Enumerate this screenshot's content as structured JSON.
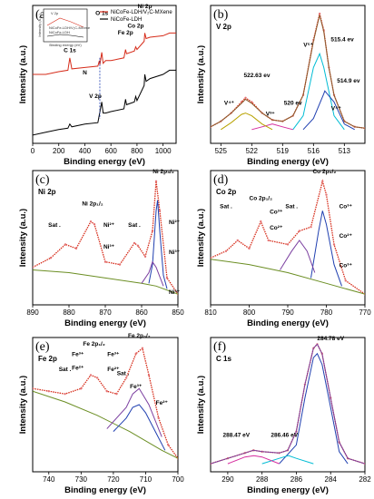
{
  "chart_data": [
    {
      "panel": "(a)",
      "type": "line",
      "title": "",
      "xlabel": "Binding energy (eV)",
      "ylabel": "Intensity (a.u.)",
      "xlim": [
        0,
        1100
      ],
      "xticks": [
        "0",
        "200",
        "400",
        "600",
        "800",
        "1000"
      ],
      "x_reversed": false,
      "series": [
        {
          "name": "NiCoFe-LDH/V₂C-MXene",
          "color": "#d62c1a",
          "x": [
            0,
            100,
            200,
            270,
            285,
            300,
            400,
            500,
            512,
            515,
            530,
            540,
            560,
            600,
            700,
            712,
            720,
            780,
            790,
            800,
            855,
            860,
            870,
            900,
            1000,
            1050,
            1100
          ],
          "y": [
            0.5,
            0.5,
            0.52,
            0.53,
            0.62,
            0.54,
            0.55,
            0.56,
            0.6,
            0.57,
            0.66,
            0.58,
            0.6,
            0.6,
            0.62,
            0.68,
            0.65,
            0.67,
            0.7,
            0.68,
            0.74,
            0.8,
            0.76,
            0.77,
            0.78,
            0.8,
            0.8
          ]
        },
        {
          "name": "NiCoFe-LDH",
          "color": "#000000",
          "x": [
            0,
            100,
            200,
            270,
            285,
            300,
            400,
            500,
            530,
            540,
            560,
            600,
            700,
            712,
            720,
            780,
            790,
            800,
            855,
            860,
            870,
            900,
            1000,
            1050,
            1100
          ],
          "y": [
            0.06,
            0.08,
            0.1,
            0.11,
            0.14,
            0.12,
            0.14,
            0.15,
            0.3,
            0.22,
            0.22,
            0.23,
            0.25,
            0.32,
            0.28,
            0.3,
            0.34,
            0.31,
            0.42,
            0.5,
            0.45,
            0.47,
            0.5,
            0.53,
            0.53
          ]
        }
      ],
      "annotations": [
        {
          "text": "C 1s",
          "x": 285,
          "y": 0.66
        },
        {
          "text": "N",
          "x": 400,
          "y": 0.5
        },
        {
          "text": "O 1s",
          "x": 530,
          "y": 0.93
        },
        {
          "text": "V 2p",
          "x": 480,
          "y": 0.33
        },
        {
          "text": "Fe 2p",
          "x": 712,
          "y": 0.79
        },
        {
          "text": "Co 2p",
          "x": 790,
          "y": 0.84
        },
        {
          "text": "Ni 2p",
          "x": 860,
          "y": 0.98
        }
      ],
      "inset": {
        "title": "V 2p",
        "xlabel": "Binding energy (eV)",
        "ylabel": "Intensity (a.u.)",
        "legend": [
          "NiCoFe-LDH/V₂C-MXene",
          "NiCoFe-LDH"
        ]
      }
    },
    {
      "panel": "(b)",
      "type": "line",
      "title": "V 2p",
      "xlabel": "Binding energy (eV)",
      "ylabel": "Intensity (a.u.)",
      "xlim": [
        526,
        511
      ],
      "xticks": [
        "525",
        "522",
        "519",
        "516",
        "513"
      ],
      "x_reversed": true,
      "series": [
        {
          "name": "",
          "role": "raw",
          "color": "#d62c1a",
          "x": [
            526,
            525,
            524,
            523,
            522.6,
            522,
            521,
            520,
            519,
            518,
            517,
            516,
            515.4,
            515,
            514.5,
            514,
            513,
            512,
            511
          ],
          "y": [
            0.12,
            0.16,
            0.22,
            0.3,
            0.33,
            0.3,
            0.22,
            0.17,
            0.16,
            0.2,
            0.35,
            0.75,
            0.94,
            0.82,
            0.55,
            0.35,
            0.16,
            0.12,
            0.11
          ]
        },
        {
          "name": "",
          "role": "envelope",
          "color": "#8b5a2b",
          "x": [
            526,
            525,
            524,
            523,
            522.6,
            522,
            521,
            520,
            519,
            518,
            517,
            516,
            515.4,
            515,
            514.5,
            514,
            513,
            512,
            511
          ],
          "y": [
            0.12,
            0.16,
            0.22,
            0.29,
            0.32,
            0.29,
            0.22,
            0.17,
            0.16,
            0.2,
            0.35,
            0.74,
            0.93,
            0.81,
            0.55,
            0.35,
            0.16,
            0.12,
            0.11
          ]
        },
        {
          "name": "",
          "role": "V5+",
          "color": "#00bcd4",
          "x": [
            518,
            517,
            516,
            515.4,
            515,
            514,
            513
          ],
          "y": [
            0.1,
            0.2,
            0.55,
            0.65,
            0.55,
            0.2,
            0.1
          ]
        },
        {
          "name": "",
          "role": "V4+",
          "color": "#1f3fb0",
          "x": [
            517,
            516,
            515,
            514.9,
            514,
            513,
            512
          ],
          "y": [
            0.1,
            0.18,
            0.36,
            0.38,
            0.3,
            0.14,
            0.1
          ]
        },
        {
          "name": "",
          "role": "V3+",
          "color": "#d62c9e",
          "x": [
            522,
            521,
            520,
            519,
            518
          ],
          "y": [
            0.1,
            0.12,
            0.14,
            0.12,
            0.1
          ]
        },
        {
          "name": "",
          "role": "V4+ 2p1/2",
          "color": "#b8a200",
          "x": [
            525,
            524,
            523,
            522.6,
            522,
            521,
            520
          ],
          "y": [
            0.1,
            0.15,
            0.21,
            0.22,
            0.2,
            0.14,
            0.1
          ]
        }
      ],
      "annotations": [
        {
          "text": "515.4 ev",
          "x": 513.2,
          "y": 0.74
        },
        {
          "text": "514.9 ev",
          "x": 512.6,
          "y": 0.44
        },
        {
          "text": "520 ev",
          "x": 518.0,
          "y": 0.28
        },
        {
          "text": "522.63 ev",
          "x": 521.5,
          "y": 0.48
        }
      ],
      "component_labels": [
        "V⁵⁺",
        "V⁴⁺",
        "V³⁺",
        "V⁴⁺"
      ]
    },
    {
      "panel": "(c)",
      "type": "line",
      "title": "Ni 2p",
      "xlabel": "Binding energy (eV)",
      "ylabel": "Intensity (a.u.)",
      "xlim": [
        890,
        850
      ],
      "xticks": [
        "890",
        "880",
        "870",
        "860",
        "850"
      ],
      "x_reversed": true,
      "series": [
        {
          "name": "",
          "role": "raw",
          "color": "#d62c1a",
          "x": [
            890,
            885,
            881,
            878,
            874,
            873,
            870,
            866,
            862,
            861,
            859,
            857,
            856,
            855,
            853,
            850
          ],
          "y": [
            0.28,
            0.35,
            0.45,
            0.42,
            0.62,
            0.6,
            0.32,
            0.3,
            0.46,
            0.44,
            0.36,
            0.55,
            0.92,
            0.7,
            0.2,
            0.08
          ]
        },
        {
          "name": "",
          "role": "background",
          "color": "#6b8e23",
          "x": [
            890,
            880,
            870,
            860,
            856,
            850
          ],
          "y": [
            0.26,
            0.24,
            0.2,
            0.16,
            0.14,
            0.08
          ]
        },
        {
          "name": "",
          "role": "Ni2+",
          "color": "#1f3fb0",
          "x": [
            858,
            857,
            856,
            855.6,
            855,
            854,
            853
          ],
          "y": [
            0.16,
            0.3,
            0.7,
            0.78,
            0.55,
            0.22,
            0.12
          ]
        },
        {
          "name": "",
          "role": "Ni3+",
          "color": "#7b3fa0",
          "x": [
            860,
            858,
            857,
            856,
            854
          ],
          "y": [
            0.16,
            0.24,
            0.32,
            0.28,
            0.14
          ]
        }
      ],
      "annotations": [
        {
          "text": "Ni 2p₃/₂",
          "x": 854,
          "y": 0.98
        },
        {
          "text": "Ni 2p₁/₂",
          "x": 873.5,
          "y": 0.74
        },
        {
          "text": "Sat .",
          "x": 884,
          "y": 0.58
        },
        {
          "text": "Sat .",
          "x": 862,
          "y": 0.58
        },
        {
          "text": "Ni²⁺",
          "x": 851,
          "y": 0.6
        },
        {
          "text": "Ni³⁺",
          "x": 851,
          "y": 0.38
        },
        {
          "text": "Ni²⁺",
          "x": 869,
          "y": 0.58
        },
        {
          "text": "Ni³⁺",
          "x": 869,
          "y": 0.42
        },
        {
          "text": "Ni³⁺",
          "x": 851,
          "y": 0.08
        }
      ]
    },
    {
      "panel": "(d)",
      "type": "line",
      "title": "Co 2p",
      "xlabel": "Binding energy (eV)",
      "ylabel": "Intensity (a.u.)",
      "xlim": [
        810,
        770
      ],
      "xticks": [
        "810",
        "800",
        "790",
        "780",
        "770"
      ],
      "x_reversed": true,
      "series": [
        {
          "name": "",
          "role": "raw",
          "color": "#d62c1a",
          "x": [
            810,
            806,
            803,
            800,
            797,
            795,
            790,
            787,
            784,
            781,
            780,
            778,
            775,
            770
          ],
          "y": [
            0.35,
            0.4,
            0.48,
            0.42,
            0.62,
            0.48,
            0.45,
            0.55,
            0.58,
            0.92,
            0.82,
            0.45,
            0.18,
            0.08
          ]
        },
        {
          "name": "",
          "role": "background",
          "color": "#6b8e23",
          "x": [
            810,
            800,
            790,
            780,
            770
          ],
          "y": [
            0.34,
            0.3,
            0.24,
            0.16,
            0.08
          ]
        },
        {
          "name": "",
          "role": "Co3+",
          "color": "#1f3fb0",
          "x": [
            784,
            782,
            781,
            780,
            778,
            776
          ],
          "y": [
            0.2,
            0.55,
            0.7,
            0.6,
            0.3,
            0.14
          ]
        },
        {
          "name": "",
          "role": "Co2+",
          "color": "#7b3fa0",
          "x": [
            792,
            789,
            787,
            785,
            783
          ],
          "y": [
            0.26,
            0.4,
            0.48,
            0.4,
            0.24
          ]
        }
      ],
      "annotations": [
        {
          "text": "Co 2p₃/₂",
          "x": 780.5,
          "y": 0.98
        },
        {
          "text": "Co 2p₁/₂",
          "x": 797,
          "y": 0.78
        },
        {
          "text": "Sat .",
          "x": 806,
          "y": 0.72
        },
        {
          "text": "Sat .",
          "x": 789,
          "y": 0.72
        },
        {
          "text": "Co³⁺",
          "x": 775,
          "y": 0.72
        },
        {
          "text": "Co²⁺",
          "x": 775,
          "y": 0.5
        },
        {
          "text": "Co³⁺",
          "x": 793,
          "y": 0.68
        },
        {
          "text": "Co²⁺",
          "x": 793,
          "y": 0.56
        },
        {
          "text": "Co³⁺",
          "x": 775,
          "y": 0.28
        }
      ]
    },
    {
      "panel": "(e)",
      "type": "line",
      "title": "Fe 2p",
      "xlabel": "Binding energy (eV)",
      "ylabel": "Intensity (a.u.)",
      "xlim": [
        745,
        700
      ],
      "xticks": [
        "740",
        "730",
        "720",
        "710",
        "700"
      ],
      "x_reversed": true,
      "series": [
        {
          "name": "",
          "role": "raw",
          "color": "#d62c1a",
          "x": [
            745,
            740,
            735,
            730,
            727,
            725,
            722,
            719,
            716,
            713,
            711,
            709,
            706,
            703,
            700
          ],
          "y": [
            0.62,
            0.6,
            0.58,
            0.62,
            0.72,
            0.7,
            0.6,
            0.58,
            0.7,
            0.88,
            0.92,
            0.72,
            0.4,
            0.2,
            0.1
          ]
        },
        {
          "name": "",
          "role": "background",
          "color": "#6b8e23",
          "x": [
            745,
            735,
            725,
            715,
            705,
            700
          ],
          "y": [
            0.6,
            0.52,
            0.42,
            0.3,
            0.16,
            0.1
          ]
        },
        {
          "name": "",
          "role": "Fe2+",
          "color": "#1f3fb0",
          "x": [
            720,
            716,
            714,
            712,
            710,
            707,
            704
          ],
          "y": [
            0.3,
            0.4,
            0.48,
            0.5,
            0.44,
            0.3,
            0.16
          ]
        },
        {
          "name": "",
          "role": "Fe3+",
          "color": "#7b3fa0",
          "x": [
            722,
            716,
            714,
            712,
            709,
            705
          ],
          "y": [
            0.32,
            0.48,
            0.58,
            0.62,
            0.5,
            0.26
          ]
        }
      ],
      "annotations": [
        {
          "text": "Fe 2p₃/₂",
          "x": 712,
          "y": 1.0
        },
        {
          "text": "Fe 2p₁/₂",
          "x": 726,
          "y": 0.94
        },
        {
          "text": "Sat .",
          "x": 735,
          "y": 0.75
        },
        {
          "text": "Sat .",
          "x": 717,
          "y": 0.72
        },
        {
          "text": "Fe³⁺",
          "x": 731,
          "y": 0.86
        },
        {
          "text": "Fe²⁺",
          "x": 731,
          "y": 0.76
        },
        {
          "text": "Fe³⁺",
          "x": 720,
          "y": 0.86
        },
        {
          "text": "Fe²⁺",
          "x": 720,
          "y": 0.75
        },
        {
          "text": "Fe³⁺",
          "x": 713,
          "y": 0.62
        },
        {
          "text": "Fe²⁺",
          "x": 705,
          "y": 0.5
        }
      ]
    },
    {
      "panel": "(f)",
      "type": "line",
      "title": "C 1s",
      "xlabel": "Binding energy (eV)",
      "ylabel": "Intensity (a.u.)",
      "xlim": [
        291,
        282
      ],
      "xticks": [
        "290",
        "288",
        "286",
        "284",
        "282"
      ],
      "x_reversed": true,
      "series": [
        {
          "name": "",
          "role": "raw",
          "color": "#d62c1a",
          "x": [
            291,
            290,
            289,
            288.5,
            288,
            287,
            286.5,
            286,
            285.5,
            285,
            284.78,
            284.5,
            284,
            283.5,
            283,
            282
          ],
          "y": [
            0.06,
            0.1,
            0.14,
            0.16,
            0.15,
            0.14,
            0.16,
            0.3,
            0.65,
            0.92,
            0.95,
            0.88,
            0.55,
            0.22,
            0.1,
            0.06
          ]
        },
        {
          "name": "",
          "role": "envelope",
          "color": "#7b3fa0",
          "x": [
            291,
            290,
            289,
            288.5,
            288,
            287,
            286.5,
            286,
            285.5,
            285,
            284.78,
            284.5,
            284,
            283.5,
            283,
            282
          ],
          "y": [
            0.06,
            0.1,
            0.14,
            0.16,
            0.15,
            0.14,
            0.16,
            0.3,
            0.65,
            0.92,
            0.95,
            0.88,
            0.55,
            0.22,
            0.1,
            0.06
          ]
        },
        {
          "name": "",
          "role": "C-C",
          "color": "#1f3fb0",
          "x": [
            287,
            286,
            285.5,
            285,
            284.78,
            284.5,
            284,
            283.5,
            283
          ],
          "y": [
            0.06,
            0.2,
            0.55,
            0.85,
            0.88,
            0.8,
            0.48,
            0.15,
            0.06
          ]
        },
        {
          "name": "",
          "role": "C-O",
          "color": "#00bcd4",
          "x": [
            288,
            287,
            286.46,
            286,
            285
          ],
          "y": [
            0.06,
            0.1,
            0.12,
            0.1,
            0.06
          ]
        },
        {
          "name": "",
          "role": "O-C=O",
          "color": "#d62c9e",
          "x": [
            290,
            289,
            288.47,
            288,
            287
          ],
          "y": [
            0.06,
            0.11,
            0.12,
            0.11,
            0.06
          ]
        }
      ],
      "annotations": [
        {
          "text": "284.78 eV",
          "x": 284,
          "y": 0.98
        },
        {
          "text": "288.47 eV",
          "x": 289.5,
          "y": 0.26
        },
        {
          "text": "286.46 eV",
          "x": 286.7,
          "y": 0.26
        }
      ]
    }
  ]
}
